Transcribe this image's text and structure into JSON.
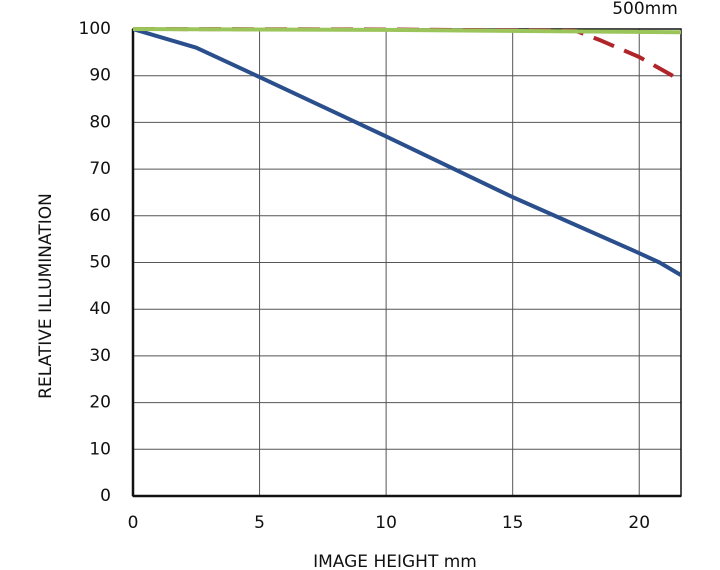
{
  "chart_data": {
    "type": "line",
    "annotation": "500mm",
    "xlabel": "IMAGE HEIGHT   mm",
    "ylabel": "RELATIVE ILLUMINATION",
    "xlim": [
      0,
      21.65
    ],
    "xticks": [
      0,
      5,
      10,
      15,
      20
    ],
    "ylim": [
      0,
      100
    ],
    "yticks": [
      0,
      10,
      20,
      30,
      40,
      50,
      60,
      70,
      80,
      90,
      100
    ],
    "grid": true,
    "series": [
      {
        "color": "#2a4f8c",
        "dashed": false,
        "x": [
          0,
          2.5,
          5,
          10,
          15,
          20,
          20.8,
          21.65
        ],
        "values": [
          100,
          96,
          89.7,
          77,
          64,
          52,
          50,
          47.3
        ]
      },
      {
        "color": "#b0252a",
        "dashed": true,
        "x": [
          0,
          10,
          17.5,
          18.5,
          20,
          21.65
        ],
        "values": [
          100,
          99.9,
          99.6,
          97.5,
          94,
          89
        ]
      },
      {
        "color": "#9bc45a",
        "dashed": false,
        "x": [
          0,
          10,
          21.65
        ],
        "values": [
          100,
          99.8,
          99.3
        ]
      }
    ]
  }
}
